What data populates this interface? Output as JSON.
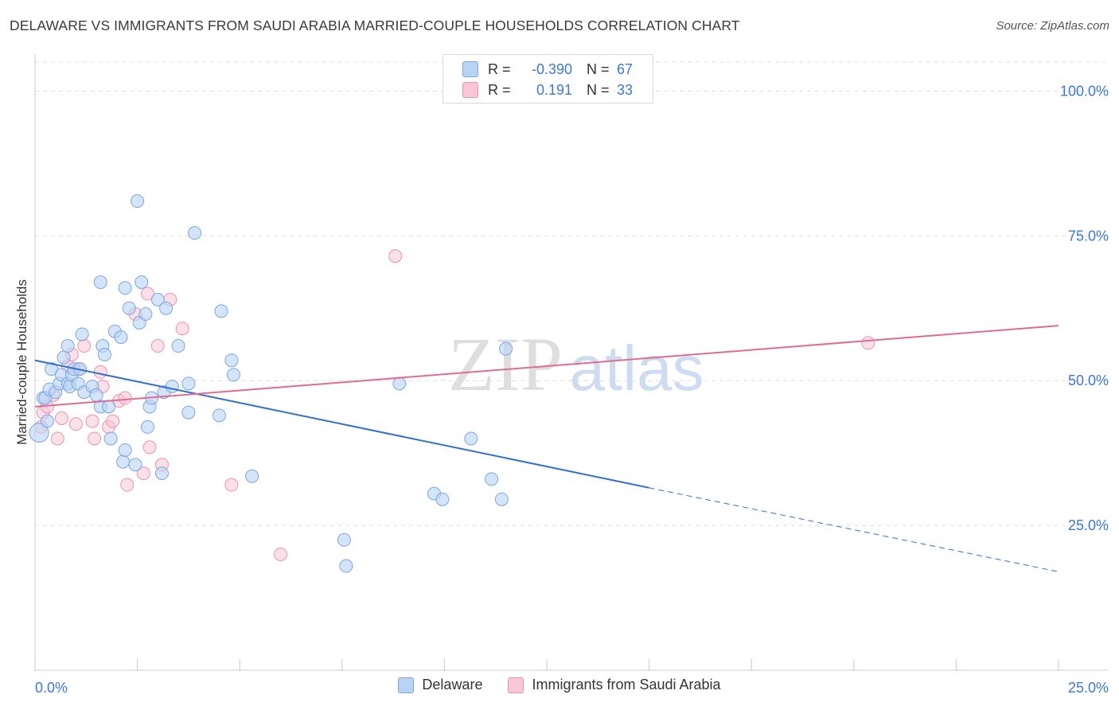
{
  "title": "DELAWARE VS IMMIGRANTS FROM SAUDI ARABIA MARRIED-COUPLE HOUSEHOLDS CORRELATION CHART",
  "source": "Source: ZipAtlas.com",
  "watermark": {
    "zip": "ZIP",
    "atlas": "atlas"
  },
  "colors": {
    "delaware_fill": "#b9d3f5",
    "delaware_stroke": "#7aa7e0",
    "delaware_line": "#2f6fd3",
    "saudi_fill": "#f9c6d6",
    "saudi_stroke": "#ec92b0",
    "saudi_line": "#e06c94",
    "tick_label": "#3b78d8",
    "grid": "#dddddd"
  },
  "stats": [
    {
      "r_label": "R =",
      "r_value": "-0.390",
      "n_label": "N =",
      "n_value": "67"
    },
    {
      "r_label": "R =",
      "r_value": "0.191",
      "n_label": "N =",
      "n_value": "33"
    }
  ],
  "chart_data": {
    "type": "scatter",
    "title": "DELAWARE VS IMMIGRANTS FROM SAUDI ARABIA MARRIED-COUPLE HOUSEHOLDS CORRELATION CHART",
    "xlabel": "",
    "ylabel": "Married-couple Households",
    "xlim": [
      0,
      25
    ],
    "ylim": [
      0,
      105
    ],
    "x_tick_labels": [
      "0.0%",
      "25.0%"
    ],
    "y_ticks": [
      25,
      50,
      75,
      100
    ],
    "y_tick_labels": [
      "25.0%",
      "50.0%",
      "75.0%",
      "100.0%"
    ],
    "grid": true,
    "legend_position": "bottom",
    "series": [
      {
        "name": "Delaware",
        "points": [
          [
            0.1,
            41
          ],
          [
            0.2,
            47
          ],
          [
            0.3,
            43
          ],
          [
            0.25,
            47
          ],
          [
            0.35,
            48.5
          ],
          [
            0.4,
            52
          ],
          [
            0.5,
            48
          ],
          [
            0.6,
            49.5
          ],
          [
            0.65,
            51
          ],
          [
            0.7,
            54
          ],
          [
            0.8,
            49.5
          ],
          [
            0.8,
            56
          ],
          [
            0.85,
            49
          ],
          [
            0.9,
            51
          ],
          [
            0.95,
            52
          ],
          [
            1.05,
            49.5
          ],
          [
            1.1,
            52
          ],
          [
            1.15,
            58
          ],
          [
            1.2,
            48
          ],
          [
            1.4,
            49
          ],
          [
            1.5,
            47.5
          ],
          [
            1.6,
            45.5
          ],
          [
            1.6,
            67
          ],
          [
            1.65,
            56
          ],
          [
            1.7,
            54.5
          ],
          [
            1.8,
            45.5
          ],
          [
            1.85,
            40
          ],
          [
            1.95,
            58.5
          ],
          [
            2.1,
            57.5
          ],
          [
            2.15,
            36
          ],
          [
            2.2,
            38
          ],
          [
            2.2,
            66
          ],
          [
            2.3,
            62.5
          ],
          [
            2.45,
            35.5
          ],
          [
            2.5,
            81
          ],
          [
            2.55,
            60
          ],
          [
            2.6,
            67
          ],
          [
            2.7,
            61.5
          ],
          [
            2.75,
            42
          ],
          [
            2.8,
            45.5
          ],
          [
            2.85,
            47
          ],
          [
            3.0,
            64
          ],
          [
            3.1,
            34
          ],
          [
            3.15,
            48
          ],
          [
            3.2,
            62.5
          ],
          [
            3.35,
            49
          ],
          [
            3.5,
            56
          ],
          [
            3.75,
            49.5
          ],
          [
            3.75,
            44.5
          ],
          [
            3.9,
            75.5
          ],
          [
            4.5,
            44
          ],
          [
            4.55,
            62
          ],
          [
            4.8,
            53.5
          ],
          [
            4.85,
            51
          ],
          [
            5.3,
            33.5
          ],
          [
            7.55,
            22.5
          ],
          [
            7.6,
            18
          ],
          [
            8.9,
            49.5
          ],
          [
            9.75,
            30.5
          ],
          [
            9.95,
            29.5
          ],
          [
            10.65,
            40
          ],
          [
            11.15,
            33
          ],
          [
            11.4,
            29.5
          ],
          [
            11.5,
            55.5
          ]
        ],
        "trend": {
          "x_start": 0,
          "y_start": 53.5,
          "x_solid_end": 15,
          "y_solid_end": 31.5,
          "x_end": 25,
          "y_end": 17
        }
      },
      {
        "name": "Immigrants from Saudi Arabia",
        "points": [
          [
            0.15,
            42
          ],
          [
            0.2,
            44.5
          ],
          [
            0.3,
            45.5
          ],
          [
            0.45,
            47.5
          ],
          [
            0.55,
            40
          ],
          [
            0.65,
            43.5
          ],
          [
            0.8,
            52.5
          ],
          [
            0.9,
            54.5
          ],
          [
            1.0,
            42.5
          ],
          [
            1.05,
            52
          ],
          [
            1.2,
            56
          ],
          [
            1.4,
            43
          ],
          [
            1.45,
            40
          ],
          [
            1.6,
            51.5
          ],
          [
            1.65,
            49
          ],
          [
            1.8,
            42
          ],
          [
            1.9,
            43
          ],
          [
            2.05,
            46.5
          ],
          [
            2.2,
            47
          ],
          [
            2.25,
            32
          ],
          [
            2.45,
            61.5
          ],
          [
            2.65,
            34
          ],
          [
            2.75,
            65
          ],
          [
            2.8,
            38.5
          ],
          [
            3.0,
            56
          ],
          [
            3.1,
            35.5
          ],
          [
            3.3,
            64
          ],
          [
            3.6,
            59
          ],
          [
            4.8,
            32
          ],
          [
            6.0,
            20
          ],
          [
            8.8,
            71.5
          ],
          [
            20.35,
            56.5
          ]
        ],
        "trend": {
          "x_start": 0,
          "y_start": 45.5,
          "x_end": 25,
          "y_end": 59.5
        }
      }
    ]
  },
  "legend": {
    "items": [
      "Delaware",
      "Immigrants from Saudi Arabia"
    ]
  }
}
